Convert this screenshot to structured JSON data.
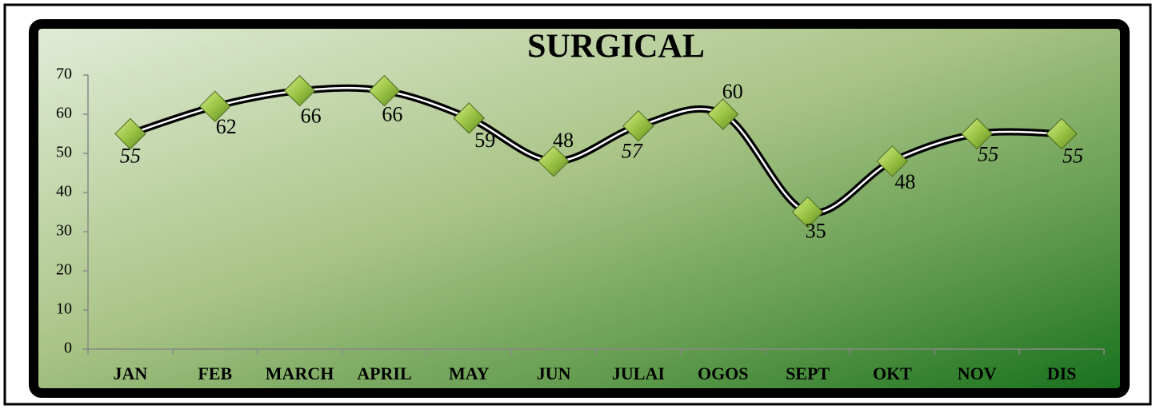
{
  "chart_data": {
    "type": "line",
    "title": "SURGICAL",
    "categories": [
      "JAN",
      "FEB",
      "MARCH",
      "APRIL",
      "MAY",
      "JUN",
      "JULAI",
      "OGOS",
      "SEPT",
      "OKT",
      "NOV",
      "DIS"
    ],
    "series": [
      {
        "name": "SURGICAL",
        "color": "#000000",
        "values": [
          55,
          62,
          66,
          66,
          59,
          48,
          57,
          60,
          35,
          48,
          55,
          55
        ]
      }
    ],
    "ylim": [
      0,
      70
    ],
    "yticks": [
      0,
      10,
      20,
      30,
      40,
      50,
      60,
      70
    ],
    "grid": false
  }
}
